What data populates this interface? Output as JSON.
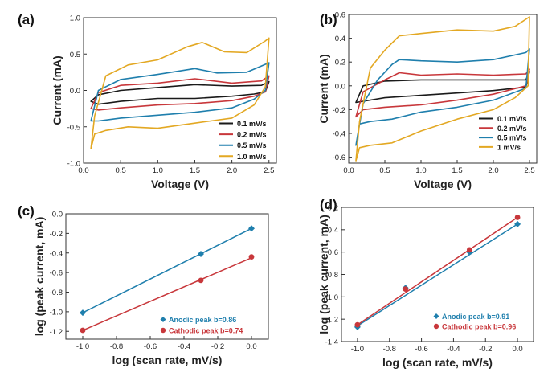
{
  "chart_data": [
    {
      "panel": "(a)",
      "type": "line",
      "xlabel": "Voltage (V)",
      "ylabel": "Current (mA)",
      "xlim": [
        0.0,
        2.6
      ],
      "ylim": [
        -1.0,
        1.0
      ],
      "xticks": [
        0.0,
        0.5,
        1.0,
        1.5,
        2.0,
        2.5
      ],
      "xtick_labels": [
        "0.0",
        "0.5",
        "1.0",
        "1.5",
        "2.0",
        "2.5"
      ],
      "yticks": [
        -1.0,
        -0.5,
        0.0,
        0.5,
        1.0
      ],
      "ytick_labels": [
        "-1.0",
        "-0.5",
        "0.0",
        "0.5",
        "1.0"
      ],
      "legend_position": "bottom-right",
      "series": [
        {
          "name": "0.1 mV/s",
          "color": "#1a1a1a",
          "x": [
            0.1,
            0.2,
            0.5,
            1.0,
            1.5,
            2.0,
            2.4,
            2.5,
            2.45,
            2.3,
            2.0,
            1.5,
            1.0,
            0.5,
            0.2,
            0.1
          ],
          "y": [
            -0.15,
            -0.06,
            0.0,
            0.04,
            0.08,
            0.06,
            0.07,
            0.12,
            -0.02,
            -0.05,
            -0.08,
            -0.11,
            -0.11,
            -0.15,
            -0.19,
            -0.15
          ]
        },
        {
          "name": "0.2 mV/s",
          "color": "#c8373b",
          "x": [
            0.1,
            0.2,
            0.5,
            1.0,
            1.5,
            2.0,
            2.4,
            2.5,
            2.45,
            2.3,
            2.0,
            1.5,
            1.0,
            0.5,
            0.2,
            0.1
          ],
          "y": [
            -0.25,
            -0.03,
            0.07,
            0.1,
            0.16,
            0.1,
            0.13,
            0.2,
            -0.02,
            -0.08,
            -0.14,
            -0.18,
            -0.2,
            -0.24,
            -0.27,
            -0.25
          ]
        },
        {
          "name": "0.5 mV/s",
          "color": "#1f7fad",
          "x": [
            0.1,
            0.2,
            0.5,
            1.0,
            1.5,
            1.8,
            2.2,
            2.5,
            2.45,
            2.3,
            2.0,
            1.5,
            1.0,
            0.5,
            0.2,
            0.1
          ],
          "y": [
            -0.42,
            0.0,
            0.15,
            0.22,
            0.3,
            0.24,
            0.25,
            0.38,
            0.0,
            -0.12,
            -0.24,
            -0.3,
            -0.34,
            -0.38,
            -0.42,
            -0.42
          ]
        },
        {
          "name": "1.0 mV/s",
          "color": "#e3a823",
          "x": [
            0.1,
            0.15,
            0.3,
            0.6,
            1.0,
            1.4,
            1.6,
            1.9,
            2.2,
            2.45,
            2.5,
            2.45,
            2.3,
            2.0,
            1.5,
            1.0,
            0.6,
            0.3,
            0.15,
            0.1
          ],
          "y": [
            -0.8,
            -0.35,
            0.2,
            0.35,
            0.42,
            0.6,
            0.66,
            0.53,
            0.52,
            0.68,
            0.72,
            0.05,
            -0.2,
            -0.38,
            -0.45,
            -0.52,
            -0.5,
            -0.55,
            -0.6,
            -0.8
          ]
        }
      ]
    },
    {
      "panel": "(b)",
      "type": "line",
      "xlabel": "Voltage (V)",
      "ylabel": "Current (mA)",
      "xlim": [
        0.0,
        2.6
      ],
      "ylim": [
        -0.65,
        0.6
      ],
      "xticks": [
        0.0,
        0.5,
        1.0,
        1.5,
        2.0,
        2.5
      ],
      "xtick_labels": [
        "0.0",
        "0.5",
        "1.0",
        "1.5",
        "2.0",
        "2.5"
      ],
      "yticks": [
        -0.6,
        -0.4,
        -0.2,
        0.0,
        0.2,
        0.4,
        0.6
      ],
      "ytick_labels": [
        "-0.6",
        "-0.4",
        "-0.2",
        "0.0",
        "0.2",
        "0.4",
        "0.6"
      ],
      "legend_position": "bottom-right",
      "series": [
        {
          "name": "0.1 mV/s",
          "color": "#1a1a1a",
          "x": [
            0.1,
            0.2,
            0.5,
            1.0,
            1.5,
            2.0,
            2.45,
            2.5,
            2.45,
            2.0,
            1.5,
            1.0,
            0.5,
            0.2,
            0.1
          ],
          "y": [
            -0.14,
            0.0,
            0.04,
            0.05,
            0.05,
            0.05,
            0.05,
            0.12,
            -0.01,
            -0.04,
            -0.06,
            -0.08,
            -0.1,
            -0.13,
            -0.14
          ]
        },
        {
          "name": "0.2 mV/s",
          "color": "#c8373b",
          "x": [
            0.1,
            0.2,
            0.5,
            0.7,
            1.0,
            1.5,
            2.0,
            2.45,
            2.5,
            2.45,
            2.0,
            1.5,
            1.0,
            0.5,
            0.2,
            0.1
          ],
          "y": [
            -0.26,
            -0.05,
            0.05,
            0.11,
            0.09,
            0.1,
            0.09,
            0.1,
            0.14,
            0.0,
            -0.07,
            -0.12,
            -0.16,
            -0.18,
            -0.2,
            -0.26
          ]
        },
        {
          "name": "0.5 mV/s",
          "color": "#1f7fad",
          "x": [
            0.1,
            0.2,
            0.4,
            0.6,
            0.7,
            1.0,
            1.5,
            2.0,
            2.45,
            2.5,
            2.45,
            2.0,
            1.5,
            1.0,
            0.6,
            0.3,
            0.15,
            0.1
          ],
          "y": [
            -0.5,
            -0.15,
            0.05,
            0.18,
            0.22,
            0.21,
            0.2,
            0.22,
            0.28,
            0.31,
            -0.02,
            -0.12,
            -0.18,
            -0.22,
            -0.28,
            -0.3,
            -0.32,
            -0.5
          ]
        },
        {
          "name": "1 mV/s",
          "color": "#e3a823",
          "x": [
            0.1,
            0.15,
            0.3,
            0.5,
            0.7,
            1.0,
            1.5,
            2.0,
            2.3,
            2.5,
            2.48,
            2.3,
            2.0,
            1.5,
            1.0,
            0.6,
            0.3,
            0.15,
            0.1
          ],
          "y": [
            -0.63,
            -0.3,
            0.15,
            0.3,
            0.42,
            0.44,
            0.47,
            0.46,
            0.5,
            0.58,
            0.0,
            -0.1,
            -0.2,
            -0.28,
            -0.38,
            -0.48,
            -0.5,
            -0.52,
            -0.63
          ]
        }
      ]
    },
    {
      "panel": "(c)",
      "type": "scatter",
      "xlabel": "log (scan rate, mV/s)",
      "ylabel": "log (peak current, mA)",
      "xlim": [
        -1.1,
        0.1
      ],
      "ylim": [
        -1.28,
        0.0
      ],
      "xticks": [
        -1.0,
        -0.8,
        -0.6,
        -0.4,
        -0.2,
        0.0
      ],
      "xtick_labels": [
        "-1.0",
        "-0.8",
        "-0.6",
        "-0.4",
        "-0.2",
        "0.0"
      ],
      "yticks": [
        -1.2,
        -1.0,
        -0.8,
        -0.6,
        -0.4,
        -0.2,
        0.0
      ],
      "ytick_labels": [
        "-1.2",
        "-1.0",
        "-0.8",
        "-0.6",
        "-0.4",
        "-0.2",
        "0.0"
      ],
      "legend_position": "bottom-right",
      "series": [
        {
          "name": "Anodic peak b=0.86",
          "color": "#1f7fad",
          "marker": "diamond",
          "x": [
            -1.0,
            -0.3,
            0.0
          ],
          "y": [
            -1.01,
            -0.41,
            -0.15
          ],
          "fit": {
            "x": [
              -1.0,
              0.0
            ],
            "y": [
              -1.01,
              -0.15
            ]
          }
        },
        {
          "name": "Cathodic peak b=0.74",
          "color": "#c8373b",
          "marker": "circle",
          "x": [
            -1.0,
            -0.3,
            0.0
          ],
          "y": [
            -1.19,
            -0.68,
            -0.44
          ],
          "fit": {
            "x": [
              -1.0,
              0.0
            ],
            "y": [
              -1.19,
              -0.45
            ]
          }
        }
      ]
    },
    {
      "panel": "(d)",
      "type": "scatter",
      "xlabel": "log (scan rate, mV/s)",
      "ylabel": "log (peak current, mA)",
      "xlim": [
        -1.1,
        0.1
      ],
      "ylim": [
        -1.4,
        -0.2
      ],
      "xticks": [
        -1.0,
        -0.8,
        -0.6,
        -0.4,
        -0.2,
        0.0
      ],
      "xtick_labels": [
        "-1.0",
        "-0.8",
        "-0.6",
        "-0.4",
        "-0.2",
        "0.0"
      ],
      "yticks": [
        -1.4,
        -1.2,
        -1.0,
        -0.8,
        -0.6,
        -0.4,
        -0.2
      ],
      "ytick_labels": [
        "-1.4",
        "-1.2",
        "-1.0",
        "-0.8",
        "-0.6",
        "-0.4",
        "-0.2"
      ],
      "legend_position": "bottom-right",
      "series": [
        {
          "name": "Anodic peak b=0.91",
          "color": "#1f7fad",
          "marker": "diamond",
          "x": [
            -1.0,
            -0.7,
            -0.3,
            0.0
          ],
          "y": [
            -1.27,
            -0.92,
            -0.6,
            -0.35
          ],
          "fit": {
            "x": [
              -1.0,
              0.0
            ],
            "y": [
              -1.26,
              -0.35
            ]
          }
        },
        {
          "name": "Cathodic peak b=0.96",
          "color": "#c8373b",
          "marker": "circle",
          "x": [
            -1.0,
            -0.7,
            -0.3,
            0.0
          ],
          "y": [
            -1.25,
            -0.93,
            -0.58,
            -0.29
          ],
          "fit": {
            "x": [
              -1.0,
              0.0
            ],
            "y": [
              -1.25,
              -0.29
            ]
          }
        }
      ]
    }
  ]
}
